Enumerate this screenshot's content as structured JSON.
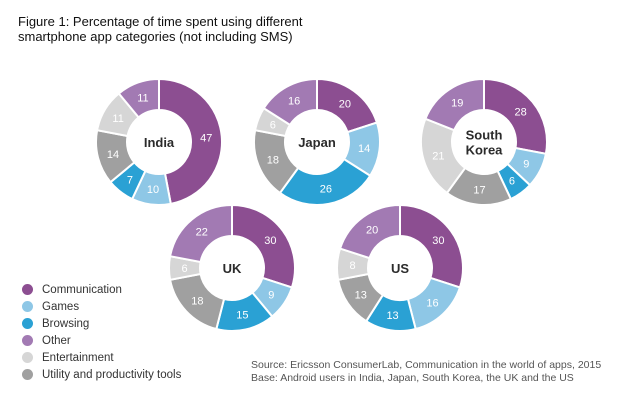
{
  "title": {
    "line1": "Figure 1: Percentage of time spent using different",
    "line2": "smartphone app categories (not including SMS)"
  },
  "legend": [
    {
      "label": "Communication",
      "color": "#8c4e91"
    },
    {
      "label": "Games",
      "color": "#8ec7e6"
    },
    {
      "label": "Browsing",
      "color": "#2aa1d4"
    },
    {
      "label": "Other",
      "color": "#a27ab3"
    },
    {
      "label": "Entertainment",
      "color": "#d6d6d6"
    },
    {
      "label": "Utility and productivity tools",
      "color": "#a0a0a0"
    }
  ],
  "footer": {
    "source": "Source: Ericsson ConsumerLab, Communication in the world of apps, 2015",
    "base": "Base: Android users in India, Japan, South Korea, the UK and the US"
  },
  "chart_data": {
    "type": "pie",
    "variant": "donut",
    "categories": [
      "Communication",
      "Games",
      "Browsing",
      "Utility and productivity tools",
      "Entertainment",
      "Other"
    ],
    "colors": [
      "#8c4e91",
      "#8ec7e6",
      "#2aa1d4",
      "#a0a0a0",
      "#d6d6d6",
      "#a27ab3"
    ],
    "charts": [
      {
        "name": "India",
        "label_lines": [
          "India"
        ],
        "values": [
          47,
          10,
          7,
          14,
          11,
          11
        ]
      },
      {
        "name": "Japan",
        "label_lines": [
          "Japan"
        ],
        "values": [
          20,
          14,
          26,
          18,
          6,
          16
        ]
      },
      {
        "name": "South Korea",
        "label_lines": [
          "South",
          "Korea"
        ],
        "values": [
          28,
          9,
          6,
          17,
          21,
          19
        ]
      },
      {
        "name": "UK",
        "label_lines": [
          "UK"
        ],
        "values": [
          30,
          9,
          15,
          18,
          6,
          22
        ]
      },
      {
        "name": "US",
        "label_lines": [
          "US"
        ],
        "values": [
          30,
          16,
          13,
          13,
          8,
          20
        ]
      }
    ]
  }
}
